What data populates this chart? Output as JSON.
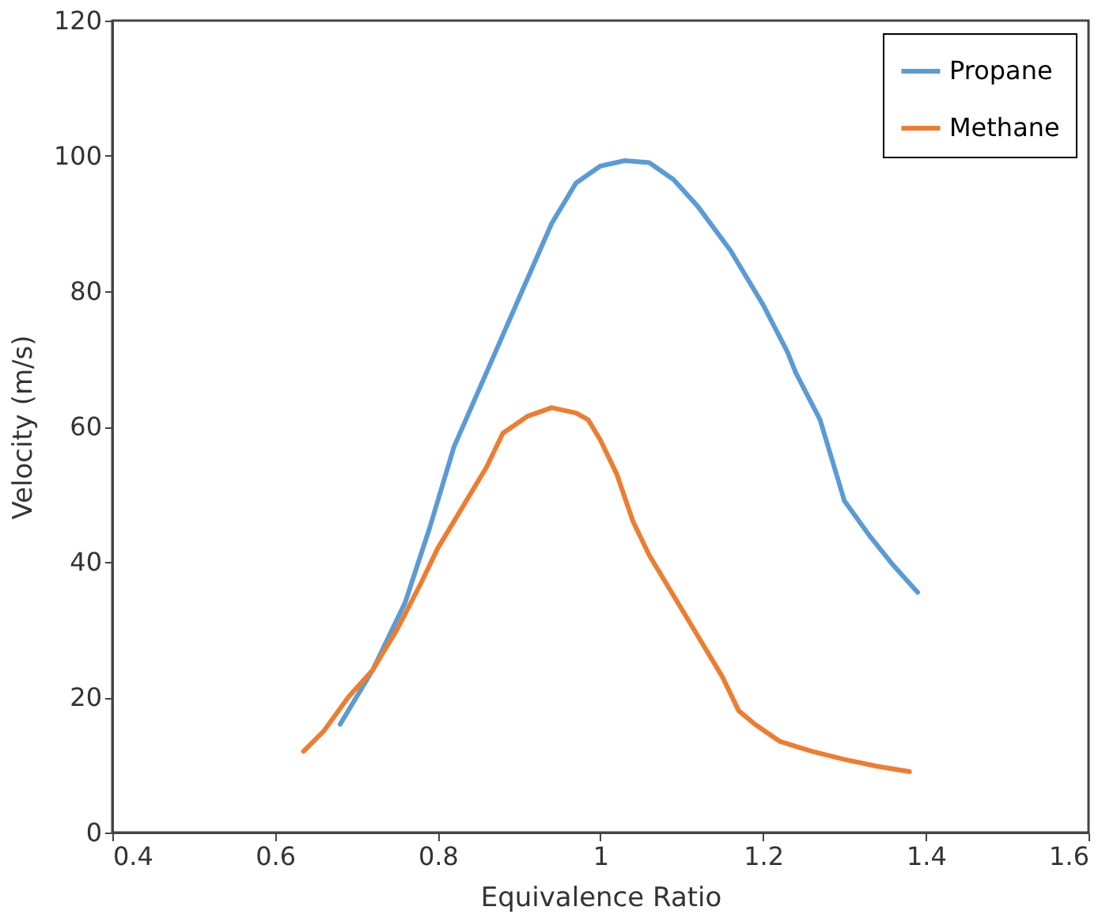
{
  "chart_data": {
    "type": "line",
    "xlabel": "Equivalence Ratio",
    "ylabel": "Velocity (m/s)",
    "xlim": [
      0.4,
      1.6
    ],
    "xticks": [
      0.4,
      0.6,
      0.8,
      1,
      1.2,
      1.4,
      1.6
    ],
    "ylim": [
      0,
      120
    ],
    "yticks": [
      0,
      20,
      40,
      60,
      80,
      100,
      120
    ],
    "grid": false,
    "legend": "top right",
    "marker": "none",
    "line_style": "solid",
    "series": [
      {
        "name": "Propane",
        "color": "#5b9bd5",
        "x": [
          0.68,
          0.72,
          0.76,
          0.79,
          0.82,
          0.86,
          0.9,
          0.94,
          0.97,
          1.0,
          1.03,
          1.06,
          1.09,
          1.12,
          1.16,
          1.2,
          1.23,
          1.24,
          1.27,
          1.285,
          1.3,
          1.33,
          1.36,
          1.39
        ],
        "values": [
          16,
          24,
          34,
          45,
          57,
          68,
          79,
          90,
          96,
          98.5,
          99.3,
          99,
          96.5,
          92.5,
          86,
          78,
          71,
          68,
          61,
          55,
          49,
          44,
          39.5,
          35.5
        ]
      },
      {
        "name": "Methane",
        "color": "#ed7d31",
        "x": [
          0.635,
          0.66,
          0.69,
          0.72,
          0.75,
          0.78,
          0.8,
          0.83,
          0.86,
          0.88,
          0.91,
          0.94,
          0.97,
          0.985,
          1.0,
          1.02,
          1.04,
          1.06,
          1.09,
          1.12,
          1.15,
          1.17,
          1.19,
          1.22,
          1.26,
          1.3,
          1.34,
          1.38
        ],
        "values": [
          12,
          15,
          20,
          24,
          30,
          37,
          42,
          48,
          54,
          59,
          61.5,
          62.8,
          62,
          61,
          58,
          53,
          46,
          41,
          35,
          29,
          23,
          18,
          16,
          13.5,
          12,
          10.8,
          9.8,
          9
        ]
      }
    ]
  }
}
